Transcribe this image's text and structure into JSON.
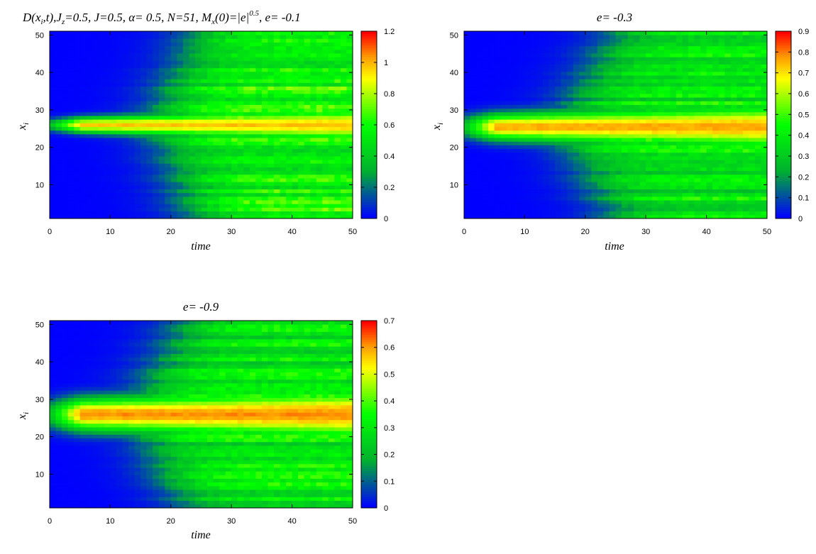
{
  "colormap": {
    "name": "blue-green-yellow-red",
    "stops": [
      {
        "t": 0.0,
        "color": "#0000ff"
      },
      {
        "t": 0.25,
        "color": "#00b030"
      },
      {
        "t": 0.5,
        "color": "#00ff00"
      },
      {
        "t": 0.75,
        "color": "#ffff00"
      },
      {
        "t": 0.87,
        "color": "#ff9900"
      },
      {
        "t": 1.0,
        "color": "#ff0000"
      }
    ]
  },
  "chart_data": [
    {
      "type": "heatmap",
      "title": "D(xᵢ,t), J_z=0.5, J=0.5, α= 0.5, N=51, Mₓ(0)=|e|^0.5, e= -0.1",
      "title_parts": {
        "p1": "D(x",
        "s1": "i",
        "p2": ",t),J",
        "s2": "z",
        "p3": "=0.5,  J=0.5, α= 0.5, N=51, M",
        "s3": "x",
        "p4": "(0)=|e|",
        "sup": "0.5",
        "p5": ",  e= -0.1"
      },
      "xlabel": "time",
      "ylabel": "x",
      "ylabel_sub": "i",
      "xlim": [
        0,
        50
      ],
      "ylim": [
        1,
        51
      ],
      "xticks": [
        "0",
        "10",
        "20",
        "30",
        "40",
        "50"
      ],
      "yticks": [
        "10",
        "20",
        "30",
        "40",
        "50"
      ],
      "colorbar": {
        "min": 0,
        "max": 1.2,
        "ticks": [
          "0",
          "0.2",
          "0.4",
          "0.6",
          "0.8",
          "1",
          "1.2"
        ]
      },
      "field": {
        "center": 26,
        "peak": 0.66,
        "center_width": 1.2,
        "spread_start": 18,
        "spread_level": 0.45,
        "front_speed": 0.55
      }
    },
    {
      "type": "heatmap",
      "title": "e= -0.3",
      "xlabel": "time",
      "ylabel": "x",
      "ylabel_sub": "i",
      "xlim": [
        0,
        50
      ],
      "ylim": [
        1,
        51
      ],
      "xticks": [
        "0",
        "10",
        "20",
        "30",
        "40",
        "50"
      ],
      "yticks": [
        "10",
        "20",
        "30",
        "40",
        "50"
      ],
      "colorbar": {
        "min": 0,
        "max": 0.9,
        "ticks": [
          "0",
          "0.1",
          "0.2",
          "0.3",
          "0.4",
          "0.5",
          "0.6",
          "0.7",
          "0.8",
          "0.9"
        ]
      },
      "field": {
        "center": 25.5,
        "peak": 0.75,
        "center_width": 2.2,
        "spread_start": 16,
        "spread_level": 0.42,
        "front_speed": 0.75
      }
    },
    {
      "type": "heatmap",
      "title": "e= -0.9",
      "xlabel": "time",
      "ylabel": "x",
      "ylabel_sub": "i",
      "xlim": [
        0,
        50
      ],
      "ylim": [
        1,
        51
      ],
      "xticks": [
        "0",
        "10",
        "20",
        "30",
        "40",
        "50"
      ],
      "yticks": [
        "10",
        "20",
        "30",
        "40",
        "50"
      ],
      "colorbar": {
        "min": 0,
        "max": 0.7,
        "ticks": [
          "0",
          "0.1",
          "0.2",
          "0.3",
          "0.4",
          "0.5",
          "0.6",
          "0.7"
        ]
      },
      "field": {
        "center": 26,
        "peak": 0.6,
        "center_width": 2.8,
        "spread_start": 14,
        "spread_level": 0.33,
        "front_speed": 0.7
      }
    }
  ]
}
